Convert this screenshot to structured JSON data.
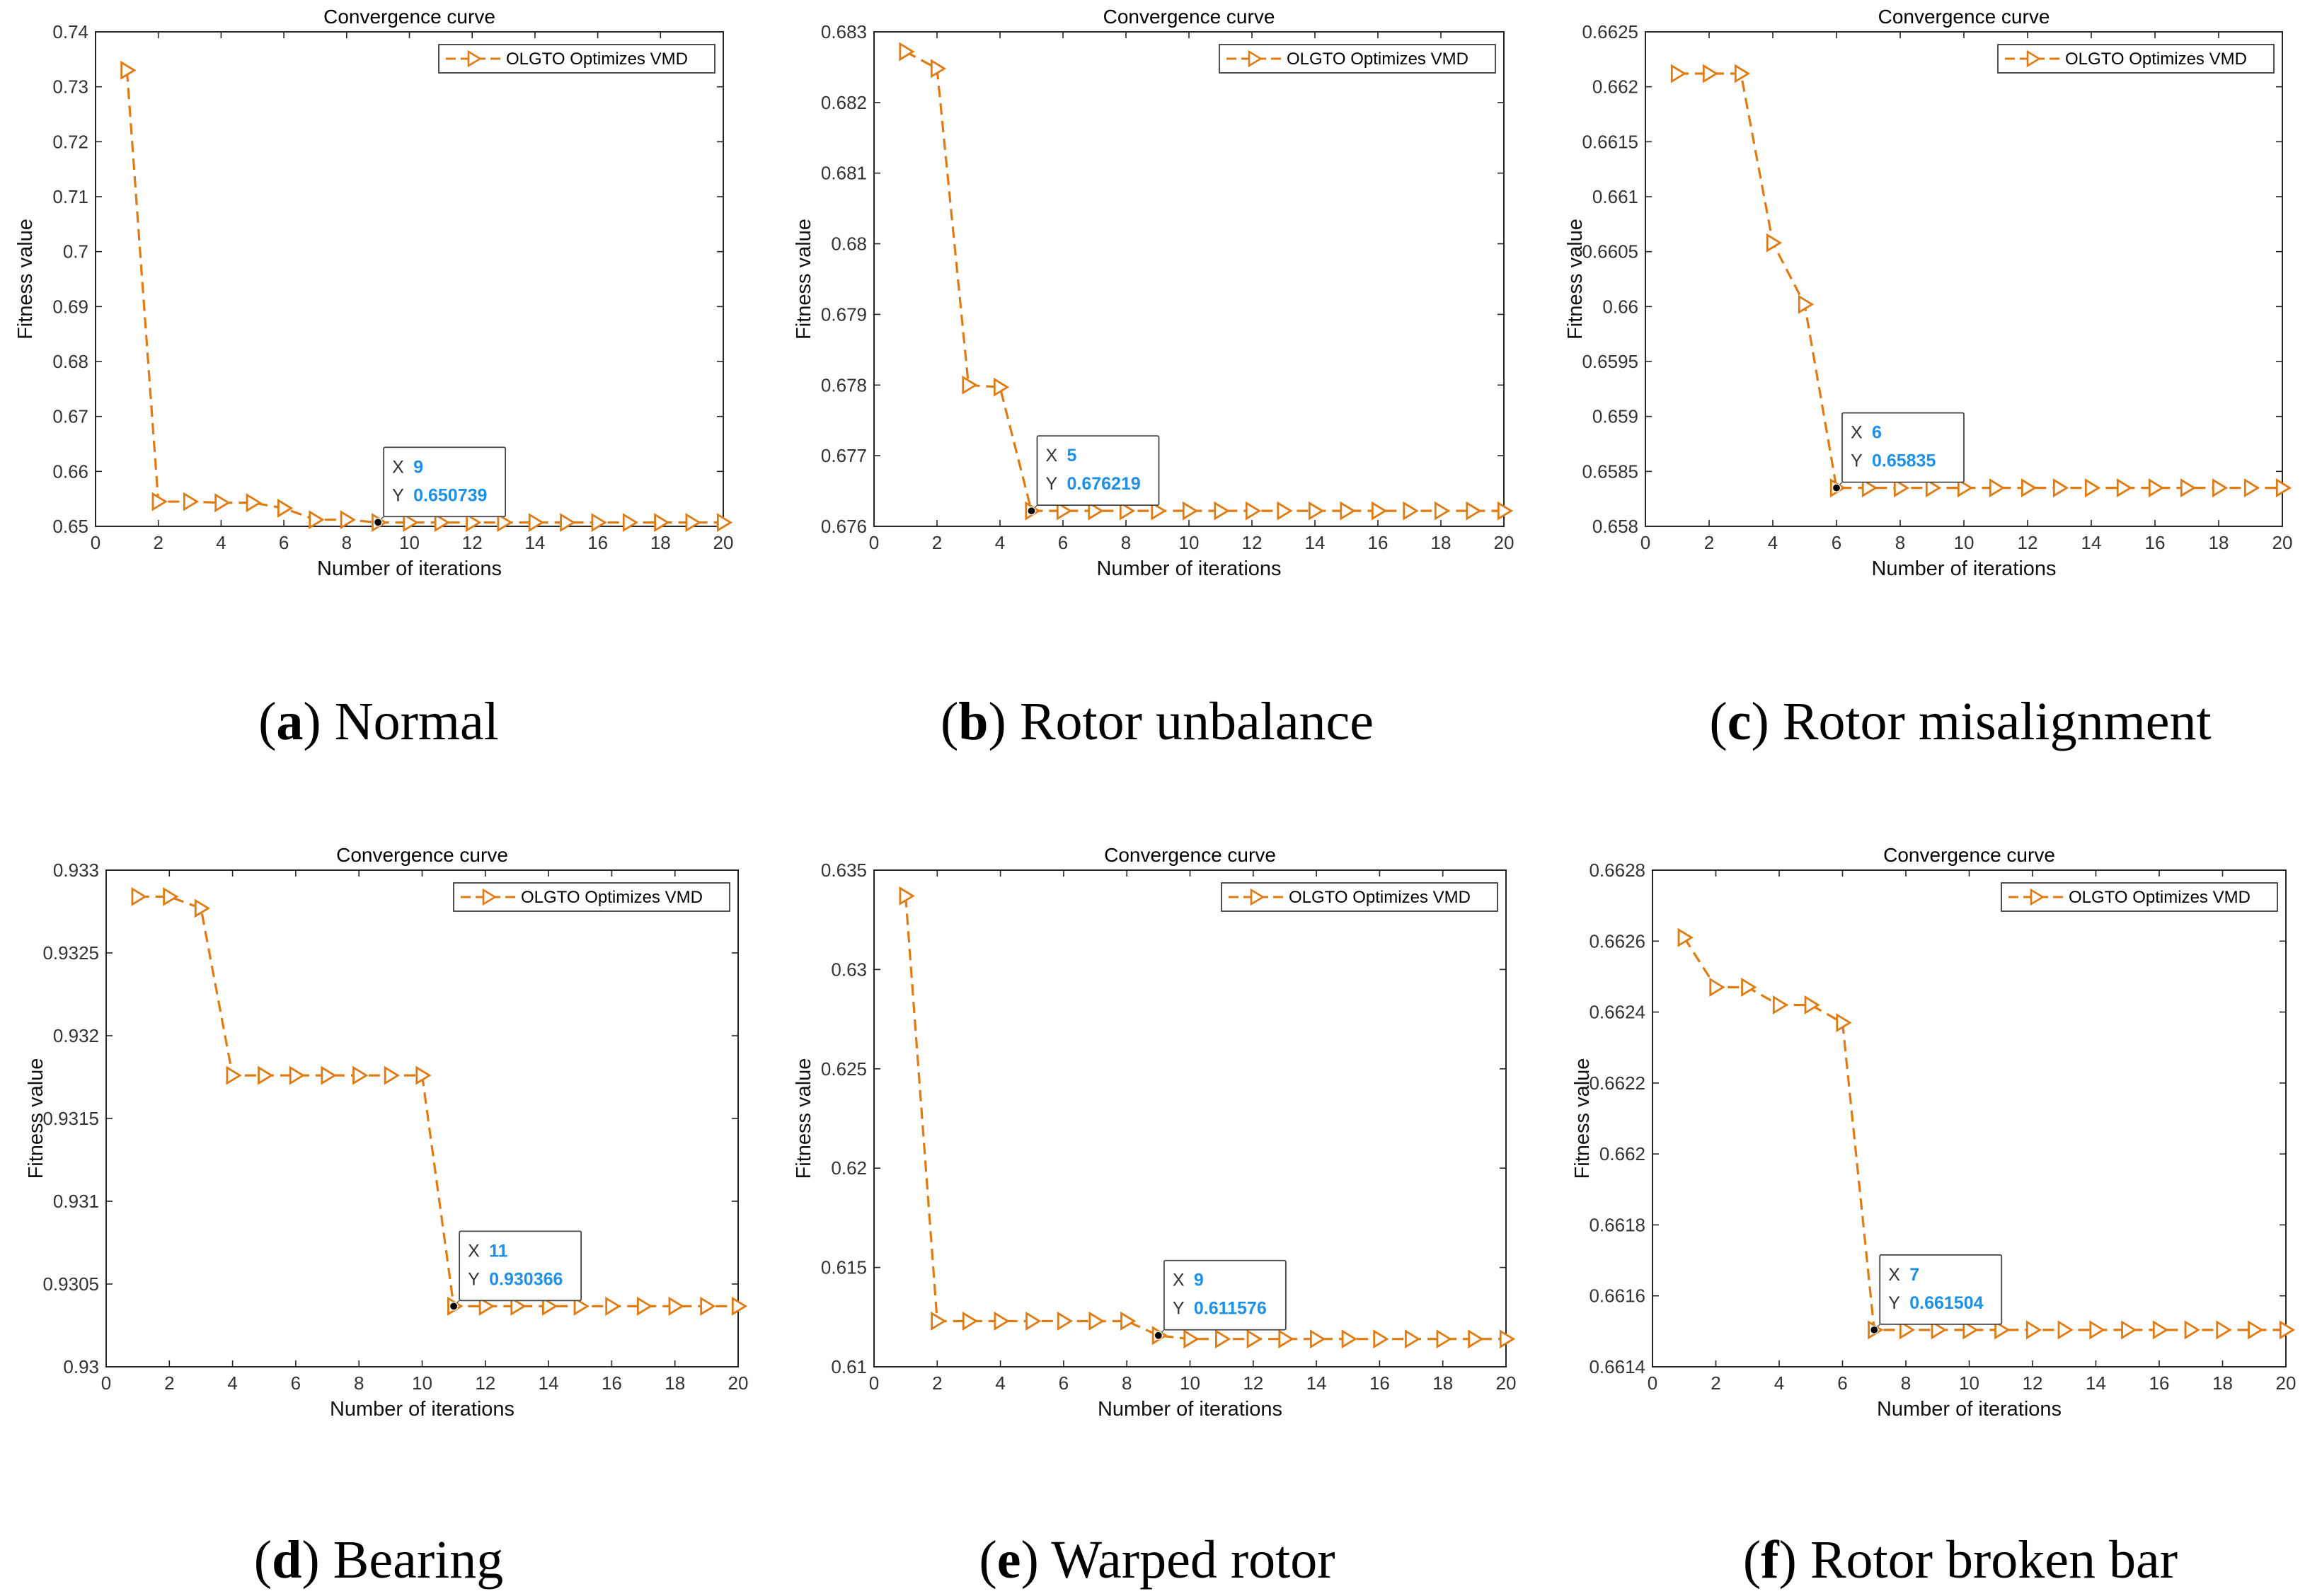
{
  "figure": {
    "panels_note": "six convergence-curve subplots"
  },
  "chart_data": [
    {
      "type": "line",
      "title": "Convergence curve",
      "xlabel": "Number of iterations",
      "ylabel": "Fitness value",
      "caption_letter": "a",
      "caption_text": " Normal",
      "legend": "OLGTO Optimizes VMD",
      "xlim": [
        0,
        20
      ],
      "ylim": [
        0.65,
        0.74
      ],
      "xticks": [
        0,
        2,
        4,
        6,
        8,
        10,
        12,
        14,
        16,
        18,
        20
      ],
      "xtick_labels": [
        "0",
        "2",
        "4",
        "6",
        "8",
        "10",
        "12",
        "14",
        "16",
        "18",
        "20"
      ],
      "yticks": [
        0.65,
        0.66,
        0.67,
        0.68,
        0.69,
        0.7,
        0.71,
        0.72,
        0.73,
        0.74
      ],
      "ytick_labels": [
        "0.65",
        "0.66",
        "0.67",
        "0.68",
        "0.69",
        "0.7",
        "0.71",
        "0.72",
        "0.73",
        "0.74"
      ],
      "x": [
        1,
        2,
        3,
        4,
        5,
        6,
        7,
        8,
        9,
        10,
        11,
        12,
        13,
        14,
        15,
        16,
        17,
        18,
        19,
        20
      ],
      "values": [
        0.733,
        0.6545,
        0.6545,
        0.6543,
        0.6543,
        0.6533,
        0.6512,
        0.6512,
        0.6507,
        0.6507,
        0.6507,
        0.6507,
        0.6507,
        0.6507,
        0.6507,
        0.6507,
        0.6507,
        0.6507,
        0.6507,
        0.6507
      ],
      "datatip": {
        "x": 9,
        "y": 0.650739,
        "x_label": "X",
        "y_label": "Y",
        "x_text": "9",
        "y_text": "0.650739"
      }
    },
    {
      "type": "line",
      "title": "Convergence curve",
      "xlabel": "Number of iterations",
      "ylabel": "Fitness value",
      "caption_letter": "b",
      "caption_text": " Rotor unbalance",
      "legend": "OLGTO Optimizes VMD",
      "xlim": [
        0,
        20
      ],
      "ylim": [
        0.676,
        0.683
      ],
      "xticks": [
        0,
        2,
        4,
        6,
        8,
        10,
        12,
        14,
        16,
        18,
        20
      ],
      "xtick_labels": [
        "0",
        "2",
        "4",
        "6",
        "8",
        "10",
        "12",
        "14",
        "16",
        "18",
        "20"
      ],
      "yticks": [
        0.676,
        0.677,
        0.678,
        0.679,
        0.68,
        0.681,
        0.682,
        0.683
      ],
      "ytick_labels": [
        "0.676",
        "0.677",
        "0.678",
        "0.679",
        "0.68",
        "0.681",
        "0.682",
        "0.683"
      ],
      "x": [
        1,
        2,
        3,
        4,
        5,
        6,
        7,
        8,
        9,
        10,
        11,
        12,
        13,
        14,
        15,
        16,
        17,
        18,
        19,
        20
      ],
      "values": [
        0.68272,
        0.68248,
        0.678,
        0.67797,
        0.676219,
        0.676219,
        0.676219,
        0.676219,
        0.676219,
        0.676219,
        0.676219,
        0.676219,
        0.676219,
        0.676219,
        0.676219,
        0.676219,
        0.676219,
        0.676219,
        0.676219,
        0.676219
      ],
      "datatip": {
        "x": 5,
        "y": 0.676219,
        "x_label": "X",
        "y_label": "Y",
        "x_text": "5",
        "y_text": "0.676219"
      }
    },
    {
      "type": "line",
      "title": "Convergence curve",
      "xlabel": "Number of iterations",
      "ylabel": "Fitness value",
      "caption_letter": "c",
      "caption_text": " Rotor misalignment",
      "legend": "OLGTO Optimizes VMD",
      "xlim": [
        0,
        20
      ],
      "ylim": [
        0.658,
        0.6625
      ],
      "xticks": [
        0,
        2,
        4,
        6,
        8,
        10,
        12,
        14,
        16,
        18,
        20
      ],
      "xtick_labels": [
        "0",
        "2",
        "4",
        "6",
        "8",
        "10",
        "12",
        "14",
        "16",
        "18",
        "20"
      ],
      "yticks": [
        0.658,
        0.6585,
        0.659,
        0.6595,
        0.66,
        0.6605,
        0.661,
        0.6615,
        0.662,
        0.6625
      ],
      "ytick_labels": [
        "0.658",
        "0.6585",
        "0.659",
        "0.6595",
        "0.66",
        "0.6605",
        "0.661",
        "0.6615",
        "0.662",
        "0.6625"
      ],
      "x": [
        1,
        2,
        3,
        4,
        5,
        6,
        7,
        8,
        9,
        10,
        11,
        12,
        13,
        14,
        15,
        16,
        17,
        18,
        19,
        20
      ],
      "values": [
        0.66212,
        0.66212,
        0.66212,
        0.66058,
        0.66002,
        0.65835,
        0.65835,
        0.65835,
        0.65835,
        0.65835,
        0.65835,
        0.65835,
        0.65835,
        0.65835,
        0.65835,
        0.65835,
        0.65835,
        0.65835,
        0.65835,
        0.65835
      ],
      "datatip": {
        "x": 6,
        "y": 0.65835,
        "x_label": "X",
        "y_label": "Y",
        "x_text": "6",
        "y_text": "0.65835"
      }
    },
    {
      "type": "line",
      "title": "Convergence curve",
      "xlabel": "Number of iterations",
      "ylabel": "Fitness value",
      "caption_letter": "d",
      "caption_text": " Bearing",
      "legend": "OLGTO Optimizes VMD",
      "xlim": [
        0,
        20
      ],
      "ylim": [
        0.93,
        0.933
      ],
      "xticks": [
        0,
        2,
        4,
        6,
        8,
        10,
        12,
        14,
        16,
        18,
        20
      ],
      "xtick_labels": [
        "0",
        "2",
        "4",
        "6",
        "8",
        "10",
        "12",
        "14",
        "16",
        "18",
        "20"
      ],
      "yticks": [
        0.93,
        0.9305,
        0.931,
        0.9315,
        0.932,
        0.9325,
        0.933
      ],
      "ytick_labels": [
        "0.93",
        "0.9305",
        "0.931",
        "0.9315",
        "0.932",
        "0.9325",
        "0.933"
      ],
      "x": [
        1,
        2,
        3,
        4,
        5,
        6,
        7,
        8,
        9,
        10,
        11,
        12,
        13,
        14,
        15,
        16,
        17,
        18,
        19,
        20
      ],
      "values": [
        0.93284,
        0.93284,
        0.93277,
        0.93176,
        0.93176,
        0.93176,
        0.93176,
        0.93176,
        0.93176,
        0.93176,
        0.930366,
        0.930366,
        0.930366,
        0.930366,
        0.930366,
        0.930366,
        0.930366,
        0.930366,
        0.930366,
        0.930366
      ],
      "datatip": {
        "x": 11,
        "y": 0.930366,
        "x_label": "X",
        "y_label": "Y",
        "x_text": "11",
        "y_text": "0.930366"
      }
    },
    {
      "type": "line",
      "title": "Convergence curve",
      "xlabel": "Number of iterations",
      "ylabel": "Fitness value",
      "caption_letter": "e",
      "caption_text": " Warped rotor",
      "legend": "OLGTO Optimizes VMD",
      "xlim": [
        0,
        20
      ],
      "ylim": [
        0.61,
        0.635
      ],
      "xticks": [
        0,
        2,
        4,
        6,
        8,
        10,
        12,
        14,
        16,
        18,
        20
      ],
      "xtick_labels": [
        "0",
        "2",
        "4",
        "6",
        "8",
        "10",
        "12",
        "14",
        "16",
        "18",
        "20"
      ],
      "yticks": [
        0.61,
        0.615,
        0.62,
        0.625,
        0.63,
        0.635
      ],
      "ytick_labels": [
        "0.61",
        "0.615",
        "0.62",
        "0.625",
        "0.63",
        "0.635"
      ],
      "x": [
        1,
        2,
        3,
        4,
        5,
        6,
        7,
        8,
        9,
        10,
        11,
        12,
        13,
        14,
        15,
        16,
        17,
        18,
        19,
        20
      ],
      "values": [
        0.6337,
        0.6123,
        0.6123,
        0.6123,
        0.6123,
        0.6123,
        0.6123,
        0.6123,
        0.611576,
        0.6114,
        0.6114,
        0.6114,
        0.6114,
        0.6114,
        0.6114,
        0.6114,
        0.6114,
        0.6114,
        0.6114,
        0.6114
      ],
      "datatip": {
        "x": 9,
        "y": 0.611576,
        "x_label": "X",
        "y_label": "Y",
        "x_text": "9",
        "y_text": "0.611576"
      }
    },
    {
      "type": "line",
      "title": "Convergence curve",
      "xlabel": "Number of iterations",
      "ylabel": "Fitness value",
      "caption_letter": "f",
      "caption_text": " Rotor broken bar",
      "legend": "OLGTO Optimizes VMD",
      "xlim": [
        0,
        20
      ],
      "ylim": [
        0.6614,
        0.6628
      ],
      "xticks": [
        0,
        2,
        4,
        6,
        8,
        10,
        12,
        14,
        16,
        18,
        20
      ],
      "xtick_labels": [
        "0",
        "2",
        "4",
        "6",
        "8",
        "10",
        "12",
        "14",
        "16",
        "18",
        "20"
      ],
      "yticks": [
        0.6614,
        0.6616,
        0.6618,
        0.662,
        0.6622,
        0.6624,
        0.6626,
        0.6628
      ],
      "ytick_labels": [
        "0.6614",
        "0.6616",
        "0.6618",
        "0.662",
        "0.6622",
        "0.6624",
        "0.6626",
        "0.6628"
      ],
      "x": [
        1,
        2,
        3,
        4,
        5,
        6,
        7,
        8,
        9,
        10,
        11,
        12,
        13,
        14,
        15,
        16,
        17,
        18,
        19,
        20
      ],
      "values": [
        0.66261,
        0.66247,
        0.66247,
        0.66242,
        0.66242,
        0.66237,
        0.661504,
        0.661504,
        0.661504,
        0.661504,
        0.661504,
        0.661504,
        0.661504,
        0.661504,
        0.661504,
        0.661504,
        0.661504,
        0.661504,
        0.661504,
        0.661504
      ],
      "datatip": {
        "x": 7,
        "y": 0.661504,
        "x_label": "X",
        "y_label": "Y",
        "x_text": "7",
        "y_text": "0.661504"
      }
    }
  ],
  "colors": {
    "line": "#E07B12",
    "datatip_value": "#1E90E8",
    "axis": "#262626",
    "grid_text": "#333333"
  }
}
